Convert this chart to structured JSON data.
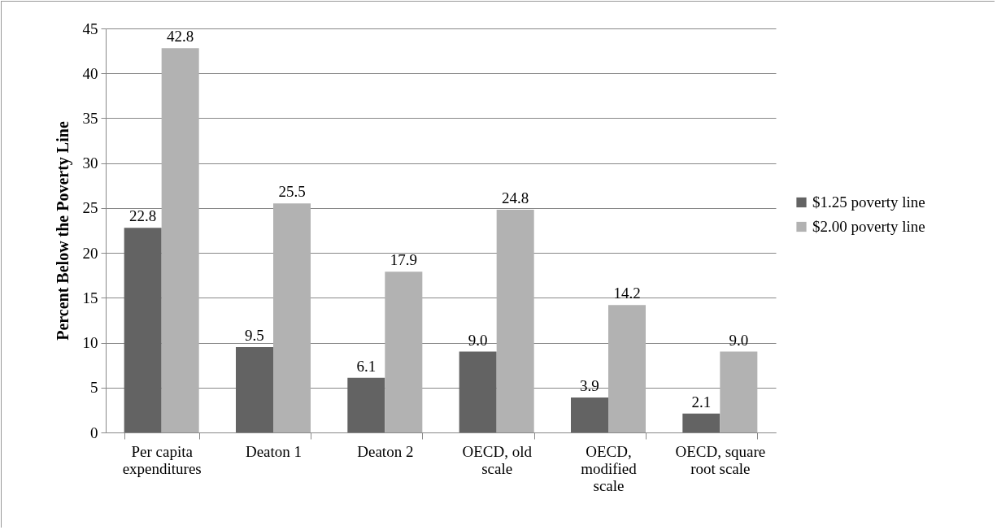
{
  "chart_data": {
    "type": "bar",
    "ylabel": "Percent Below the Poverty Line",
    "categories": [
      "Per capita expenditures",
      "Deaton 1",
      "Deaton 2",
      "OECD, old scale",
      "OECD, modified scale",
      "OECD, square root scale"
    ],
    "series": [
      {
        "name": "$1.25 poverty line",
        "color": "#636363",
        "values": [
          22.8,
          9.5,
          6.1,
          9.0,
          3.9,
          2.1
        ],
        "value_labels": [
          "22.8",
          "9.5",
          "6.1",
          "9.0",
          "3.9",
          "2.1"
        ]
      },
      {
        "name": "$2.00 poverty line",
        "color": "#b2b2b2",
        "values": [
          42.8,
          25.5,
          17.9,
          24.8,
          14.2,
          9.0
        ],
        "value_labels": [
          "42.8",
          "25.5",
          "17.9",
          "24.8",
          "14.2",
          "9.0"
        ]
      }
    ],
    "ylim": [
      0,
      45
    ],
    "yticks": [
      0,
      5,
      10,
      15,
      20,
      25,
      30,
      35,
      40,
      45
    ],
    "grid": "y",
    "legend": "right"
  }
}
